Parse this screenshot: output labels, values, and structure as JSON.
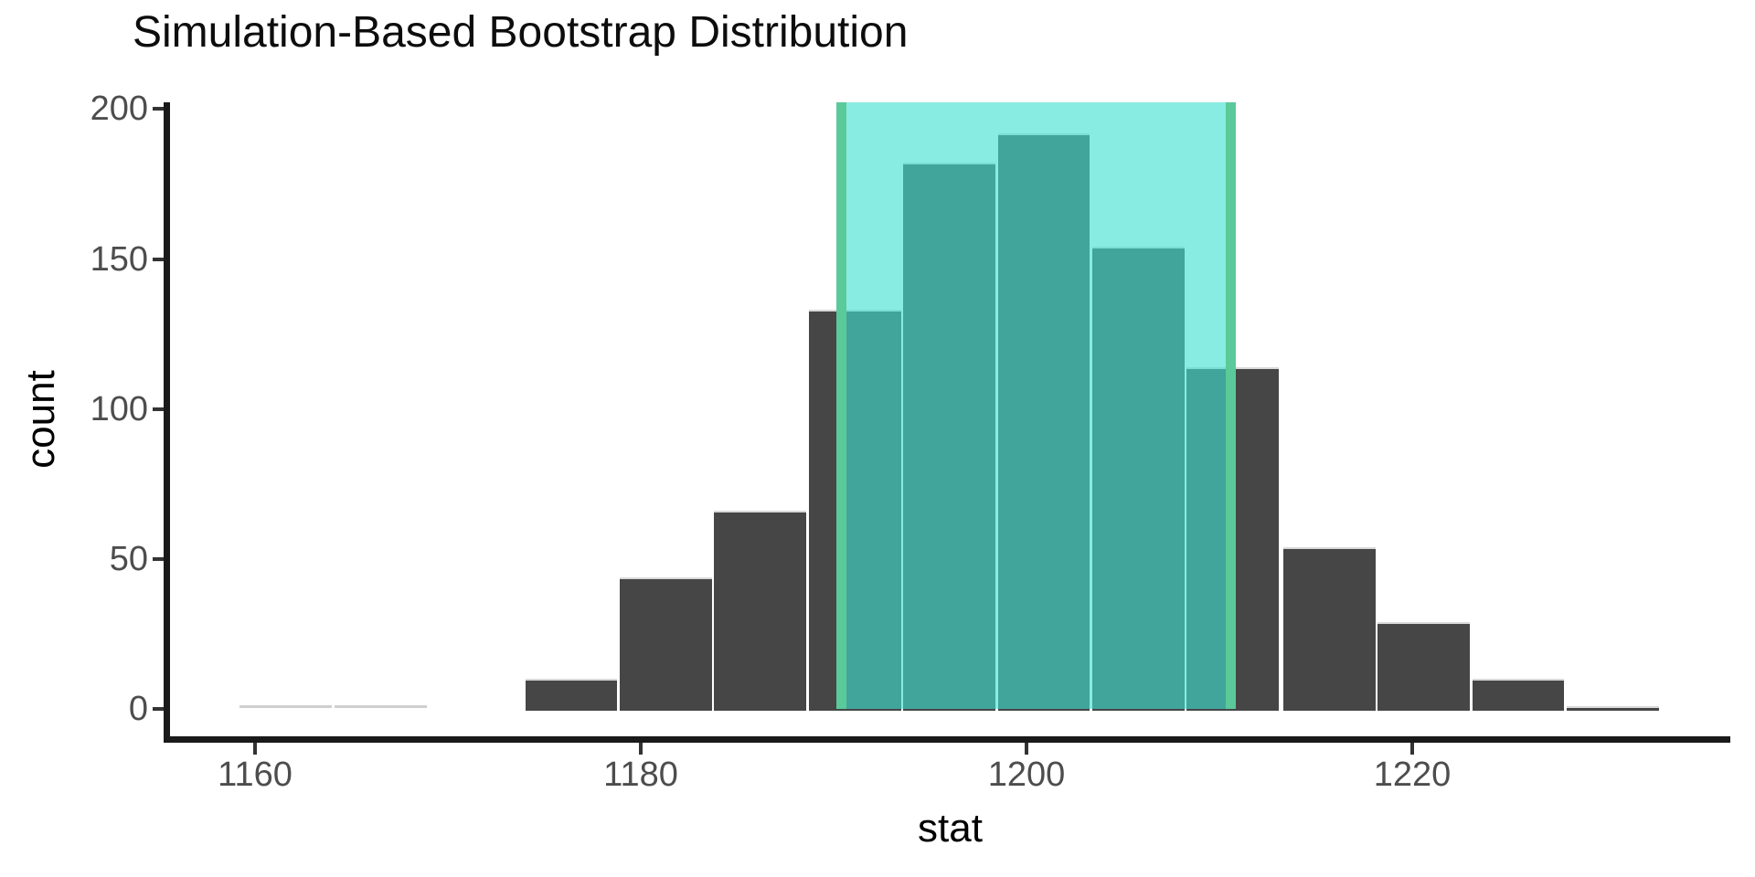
{
  "title": "Simulation-Based Bootstrap Distribution",
  "chart_data": {
    "type": "histogram",
    "title": "Simulation-Based Bootstrap Distribution",
    "xlabel": "stat",
    "ylabel": "count",
    "x_ticks": [
      1160,
      1180,
      1200,
      1220
    ],
    "y_ticks": [
      0,
      50,
      100,
      150,
      200
    ],
    "xlim": [
      1155.6,
      1237.2
    ],
    "ylim": [
      0,
      202
    ],
    "grid": false,
    "legend": false,
    "bin_width": 4.92,
    "bins": [
      {
        "center": 1161.6,
        "count": 1,
        "faint": true
      },
      {
        "center": 1166.5,
        "count": 1,
        "faint": true
      },
      {
        "center": 1171.5,
        "count": 0
      },
      {
        "center": 1176.4,
        "count": 10
      },
      {
        "center": 1181.3,
        "count": 44
      },
      {
        "center": 1186.2,
        "count": 66
      },
      {
        "center": 1191.1,
        "count": 133
      },
      {
        "center": 1196.0,
        "count": 182
      },
      {
        "center": 1200.9,
        "count": 192
      },
      {
        "center": 1205.8,
        "count": 154
      },
      {
        "center": 1210.7,
        "count": 114
      },
      {
        "center": 1215.7,
        "count": 54
      },
      {
        "center": 1220.6,
        "count": 29
      },
      {
        "center": 1225.5,
        "count": 10
      },
      {
        "center": 1230.4,
        "count": 1
      }
    ],
    "confidence_interval": {
      "lower": 1190.4,
      "upper": 1210.6
    },
    "colors": {
      "bar": "#464646",
      "bar_edge": "#d9d9d9",
      "faint_bar": "#cfcfcf",
      "ci_fill": "rgba(64,224,208,0.62)",
      "ci_line": "#5bc99a",
      "axis": "#1a1a1a",
      "tickmark": "#333333",
      "tick_label": "#4d4d4d",
      "title": "#0d0d0d",
      "axis_title": "#000000"
    }
  }
}
